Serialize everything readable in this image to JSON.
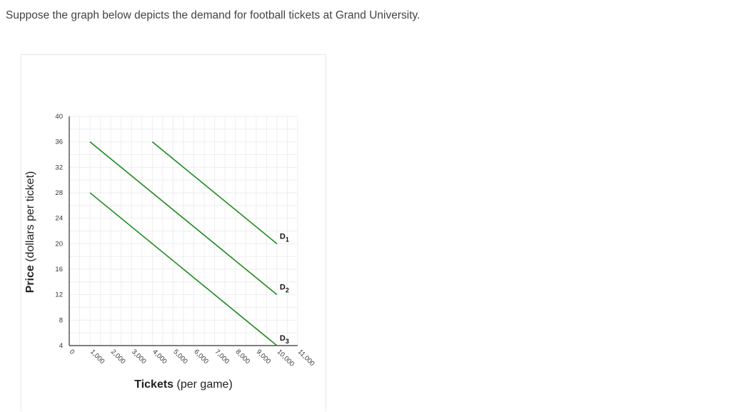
{
  "question": {
    "text": "Suppose the graph below depicts the demand for football tickets at Grand University."
  },
  "colors": {
    "curve": "#1f8a1f",
    "grid": "#eeeeee",
    "axis": "#333333"
  },
  "chart_data": {
    "type": "line",
    "title": "",
    "xlabel_bold": "Tickets",
    "xlabel_rest": "(per game)",
    "ylabel_bold": "Price",
    "ylabel_rest": "(dollars per ticket)",
    "xlim": [
      0,
      11000
    ],
    "ylim": [
      4,
      40
    ],
    "x_ticks": [
      0,
      1000,
      2000,
      3000,
      4000,
      5000,
      6000,
      7000,
      8000,
      9000,
      10000,
      11000
    ],
    "x_tick_labels": [
      "0",
      "1,000",
      "2,000",
      "3,000",
      "4,000",
      "5,000",
      "6,000",
      "7,000",
      "8,000",
      "9,000",
      "10,000",
      "11,000"
    ],
    "y_ticks": [
      4,
      8,
      12,
      16,
      20,
      24,
      28,
      32,
      36,
      40
    ],
    "y_tick_labels": [
      "4",
      "8",
      "12",
      "16",
      "20",
      "24",
      "28",
      "32",
      "36",
      "40"
    ],
    "grid": true,
    "legend": "none",
    "series": [
      {
        "name": "D",
        "sub": "1",
        "points": [
          [
            4000,
            36
          ],
          [
            10000,
            20
          ]
        ]
      },
      {
        "name": "D",
        "sub": "2",
        "points": [
          [
            1000,
            36
          ],
          [
            10000,
            12
          ]
        ]
      },
      {
        "name": "D",
        "sub": "3",
        "points": [
          [
            1000,
            28
          ],
          [
            10000,
            4
          ]
        ]
      }
    ]
  }
}
